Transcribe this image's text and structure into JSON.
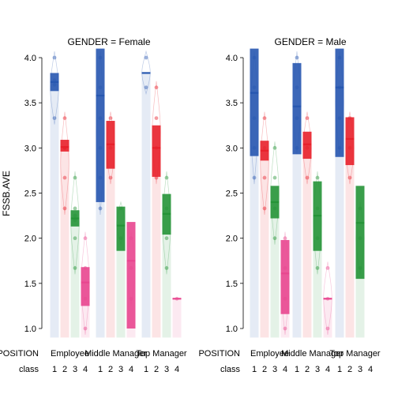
{
  "chart_data": {
    "type": "pirate",
    "ylabel": "FSSB.AVE",
    "ylim": [
      0.9,
      4.1
    ],
    "yticks": [
      1.0,
      1.5,
      2.0,
      2.5,
      3.0,
      3.5,
      4.0
    ],
    "ytick_labels": [
      "1.0",
      "1.5",
      "2.0",
      "2.5",
      "3.0",
      "3.5",
      "4.0"
    ],
    "row_labels": {
      "position": "POSITION",
      "class": "class"
    },
    "positions": [
      "Employee",
      "Middle Manager",
      "Top Manager"
    ],
    "classes": [
      "1",
      "2",
      "3",
      "4"
    ],
    "colors": {
      "1": "#2757b0",
      "2": "#e8202a",
      "3": "#259437",
      "4": "#e8468f"
    },
    "panels": [
      {
        "title": "GENDER = Female",
        "groups": [
          {
            "position": "Employee",
            "class": "1",
            "mean": 3.73,
            "ci": [
              3.63,
              3.83
            ],
            "points": [
              4.0,
              3.75,
              3.7,
              3.33
            ]
          },
          {
            "position": "Employee",
            "class": "2",
            "mean": 3.01,
            "ci": [
              2.96,
              3.09
            ],
            "points": [
              3.33,
              3.0,
              3.0,
              2.67,
              2.33
            ]
          },
          {
            "position": "Employee",
            "class": "3",
            "mean": 2.22,
            "ci": [
              2.13,
              2.31
            ],
            "points": [
              2.67,
              2.33,
              2.25,
              2.2,
              2.0,
              1.67
            ]
          },
          {
            "position": "Employee",
            "class": "4",
            "mean": 1.51,
            "ci": [
              1.25,
              1.68
            ],
            "points": [
              2.0,
              1.67,
              1.33,
              1.0
            ]
          },
          {
            "position": "Middle Manager",
            "class": "1",
            "mean": 3.58,
            "ci": [
              2.4,
              4.1
            ],
            "points": [
              4.0,
              3.67,
              3.33,
              3.0,
              2.67,
              2.33
            ]
          },
          {
            "position": "Middle Manager",
            "class": "2",
            "mean": 3.04,
            "ci": [
              2.77,
              3.3
            ],
            "points": [
              3.33,
              3.0,
              2.67
            ]
          },
          {
            "position": "Middle Manager",
            "class": "3",
            "mean": 2.14,
            "ci": [
              1.86,
              2.35
            ],
            "points": [
              2.33,
              2.0
            ]
          },
          {
            "position": "Middle Manager",
            "class": "4",
            "mean": 1.75,
            "ci": [
              1.0,
              2.18
            ],
            "points": [
              2.0,
              1.67,
              1.33
            ]
          },
          {
            "position": "Top Manager",
            "class": "1",
            "mean": 3.83,
            "ci": [
              3.83,
              3.83
            ],
            "points": [
              4.0,
              3.67
            ]
          },
          {
            "position": "Top Manager",
            "class": "2",
            "mean": 3.0,
            "ci": [
              2.68,
              3.25
            ],
            "points": [
              3.67,
              3.33,
              3.0,
              2.67
            ]
          },
          {
            "position": "Top Manager",
            "class": "3",
            "mean": 2.27,
            "ci": [
              2.04,
              2.49
            ],
            "points": [
              2.67,
              2.33,
              2.0,
              1.67
            ]
          },
          {
            "position": "Top Manager",
            "class": "4",
            "mean": 1.33,
            "ci": [
              1.33,
              1.33
            ],
            "points": [
              1.33
            ]
          }
        ]
      },
      {
        "title": "GENDER = Male",
        "groups": [
          {
            "position": "Employee",
            "class": "1",
            "mean": 3.61,
            "ci": [
              2.91,
              4.1
            ],
            "points": [
              4.0,
              3.67,
              3.33,
              3.0,
              2.67
            ]
          },
          {
            "position": "Employee",
            "class": "2",
            "mean": 2.97,
            "ci": [
              2.86,
              3.08
            ],
            "points": [
              3.33,
              3.0,
              2.67,
              2.33
            ]
          },
          {
            "position": "Employee",
            "class": "3",
            "mean": 2.4,
            "ci": [
              2.22,
              2.58
            ],
            "points": [
              3.0,
              2.67,
              2.33,
              2.0
            ]
          },
          {
            "position": "Employee",
            "class": "4",
            "mean": 1.61,
            "ci": [
              1.16,
              1.98
            ],
            "points": [
              2.0,
              1.67,
              1.33,
              1.0
            ]
          },
          {
            "position": "Middle Manager",
            "class": "1",
            "mean": 3.46,
            "ci": [
              2.93,
              3.94
            ],
            "points": [
              4.0,
              3.67,
              3.33,
              3.0
            ]
          },
          {
            "position": "Middle Manager",
            "class": "2",
            "mean": 3.04,
            "ci": [
              2.88,
              3.18
            ],
            "points": [
              3.33,
              3.0,
              2.67
            ]
          },
          {
            "position": "Middle Manager",
            "class": "3",
            "mean": 2.25,
            "ci": [
              1.86,
              2.63
            ],
            "points": [
              2.67,
              2.33,
              2.0,
              1.67
            ]
          },
          {
            "position": "Middle Manager",
            "class": "4",
            "mean": 1.33,
            "ci": [
              1.33,
              1.33
            ],
            "points": [
              1.67,
              1.33,
              1.0
            ]
          },
          {
            "position": "Top Manager",
            "class": "1",
            "mean": 3.67,
            "ci": [
              2.9,
              4.1
            ],
            "points": [
              4.0,
              3.67,
              3.33,
              3.0
            ]
          },
          {
            "position": "Top Manager",
            "class": "2",
            "mean": 3.1,
            "ci": [
              2.81,
              3.34
            ],
            "points": [
              3.33,
              3.0,
              2.67
            ]
          },
          {
            "position": "Top Manager",
            "class": "3",
            "mean": 2.17,
            "ci": [
              1.55,
              2.58
            ],
            "points": [
              2.33,
              2.0,
              1.67
            ]
          },
          {
            "position": "Top Manager",
            "class": "4",
            "mean": null,
            "ci": null,
            "points": []
          }
        ]
      }
    ]
  }
}
